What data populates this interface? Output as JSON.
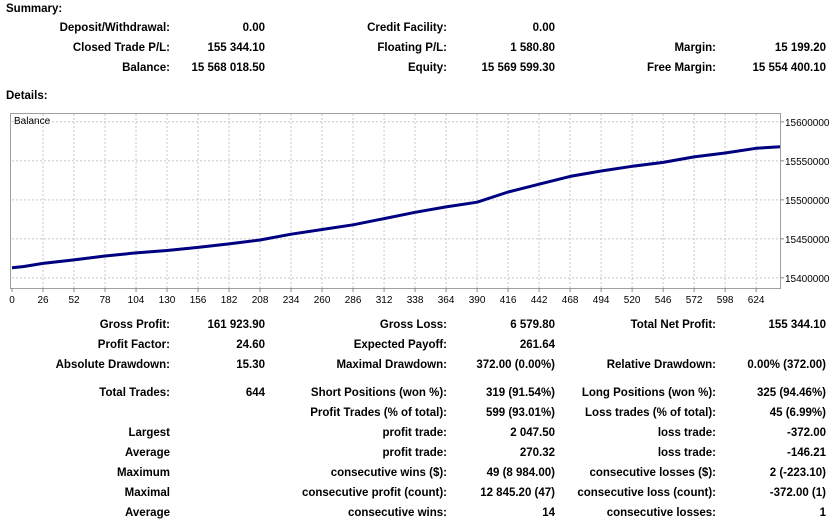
{
  "summary": {
    "title": "Summary:",
    "rows": [
      [
        {
          "label": "Deposit/Withdrawal:",
          "value": "0.00"
        },
        {
          "label": "Credit Facility:",
          "value": "0.00"
        },
        {
          "label": "",
          "value": ""
        }
      ],
      [
        {
          "label": "Closed Trade P/L:",
          "value": "155 344.10"
        },
        {
          "label": "Floating P/L:",
          "value": "1 580.80"
        },
        {
          "label": "Margin:",
          "value": "15 199.20"
        }
      ],
      [
        {
          "label": "Balance:",
          "value": "15 568 018.50"
        },
        {
          "label": "Equity:",
          "value": "15 569 599.30"
        },
        {
          "label": "Free Margin:",
          "value": "15 554 400.10"
        }
      ]
    ]
  },
  "details": {
    "title": "Details:"
  },
  "chart_data": {
    "type": "line",
    "title": "Balance",
    "xlabel": "",
    "ylabel": "",
    "x_ticks": [
      "0",
      "26",
      "52",
      "78",
      "104",
      "130",
      "156",
      "182",
      "208",
      "234",
      "260",
      "286",
      "312",
      "338",
      "364",
      "390",
      "416",
      "442",
      "468",
      "494",
      "520",
      "546",
      "572",
      "598",
      "624"
    ],
    "y_ticks": [
      "15600000",
      "15550000",
      "15500000",
      "15450000",
      "15400000"
    ],
    "xlim": [
      0,
      644
    ],
    "ylim": [
      15387000,
      15610000
    ],
    "grid": true,
    "line_color": "#000080",
    "series": [
      {
        "x": [
          0,
          10,
          26,
          52,
          78,
          104,
          130,
          156,
          182,
          208,
          234,
          260,
          286,
          312,
          338,
          364,
          390,
          416,
          442,
          468,
          494,
          520,
          546,
          572,
          598,
          624,
          644
        ],
        "values": [
          15413000,
          15414500,
          15418500,
          15423000,
          15428000,
          15432000,
          15435000,
          15439000,
          15443500,
          15448500,
          15456000,
          15462000,
          15468000,
          15476000,
          15484000,
          15491000,
          15497000,
          15510000,
          15520000,
          15530000,
          15537000,
          15543000,
          15548000,
          15555000,
          15560000,
          15566000,
          15568018.5
        ]
      }
    ]
  },
  "stats": {
    "rows": [
      [
        {
          "label": "Gross Profit:",
          "value": "161 923.90"
        },
        {
          "label": "Gross Loss:",
          "value": "6 579.80"
        },
        {
          "label": "Total Net Profit:",
          "value": "155 344.10"
        }
      ],
      [
        {
          "label": "Profit Factor:",
          "value": "24.60"
        },
        {
          "label": "Expected Payoff:",
          "value": "261.64"
        },
        {
          "label": "",
          "value": ""
        }
      ],
      [
        {
          "label": "Absolute Drawdown:",
          "value": "15.30"
        },
        {
          "label": "Maximal Drawdown:",
          "value": "372.00 (0.00%)"
        },
        {
          "label": "Relative Drawdown:",
          "value": "0.00% (372.00)"
        }
      ],
      [
        {
          "label": "Total Trades:",
          "value": "644"
        },
        {
          "label": "Short Positions (won %):",
          "value": "319 (91.54%)"
        },
        {
          "label": "Long Positions (won %):",
          "value": "325 (94.46%)"
        }
      ],
      [
        {
          "label": "",
          "value": ""
        },
        {
          "label": "Profit Trades (% of total):",
          "value": "599 (93.01%)"
        },
        {
          "label": "Loss trades (% of total):",
          "value": "45 (6.99%)"
        }
      ],
      [
        {
          "label": "Largest",
          "value": ""
        },
        {
          "label": "profit trade:",
          "value": "2 047.50"
        },
        {
          "label": "loss trade:",
          "value": "-372.00"
        }
      ],
      [
        {
          "label": "Average",
          "value": ""
        },
        {
          "label": "profit trade:",
          "value": "270.32"
        },
        {
          "label": "loss trade:",
          "value": "-146.21"
        }
      ],
      [
        {
          "label": "Maximum",
          "value": ""
        },
        {
          "label": "consecutive wins ($):",
          "value": "49 (8 984.00)"
        },
        {
          "label": "consecutive losses ($):",
          "value": "2 (-223.10)"
        }
      ],
      [
        {
          "label": "Maximal",
          "value": ""
        },
        {
          "label": "consecutive profit (count):",
          "value": "12 845.20 (47)"
        },
        {
          "label": "consecutive loss (count):",
          "value": "-372.00 (1)"
        }
      ],
      [
        {
          "label": "Average",
          "value": ""
        },
        {
          "label": "consecutive wins:",
          "value": "14"
        },
        {
          "label": "consecutive losses:",
          "value": "1"
        }
      ]
    ]
  }
}
